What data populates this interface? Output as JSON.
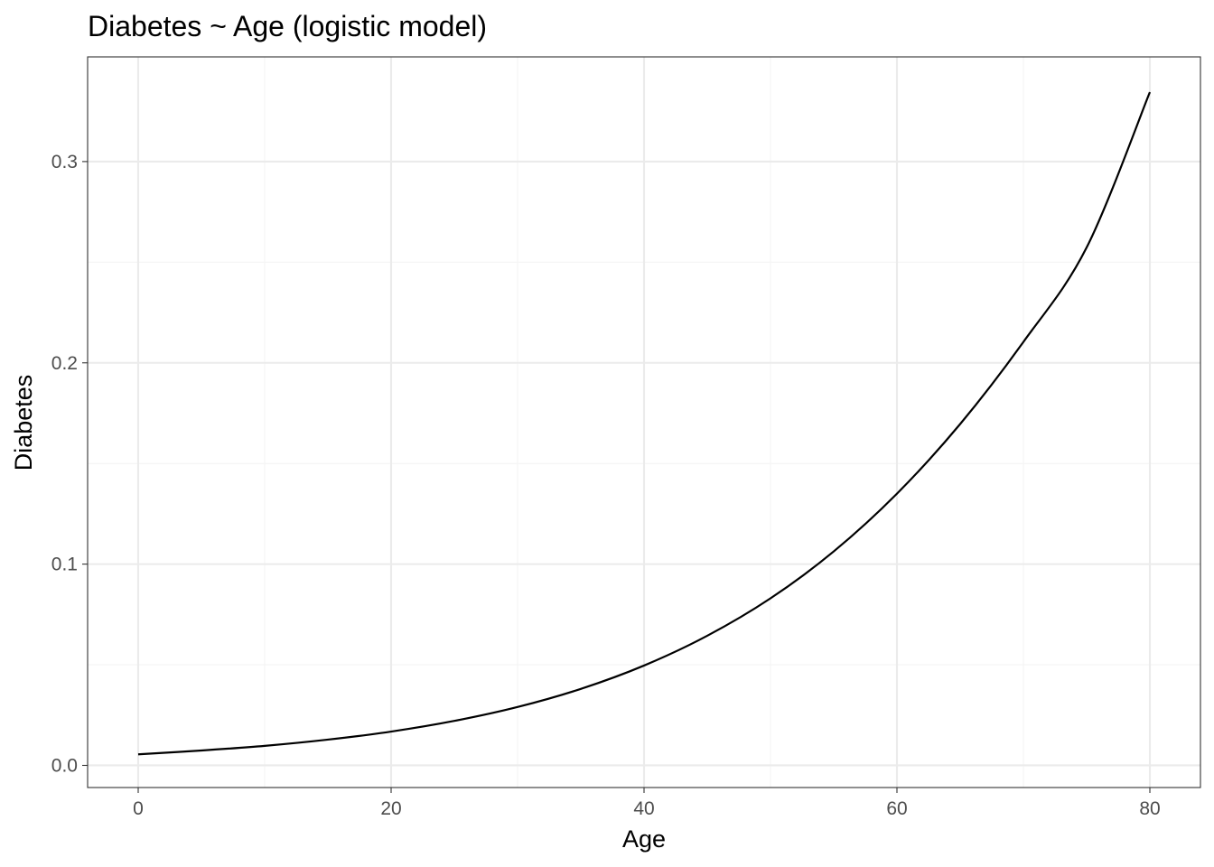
{
  "chart_data": {
    "type": "line",
    "title": "Diabetes ~ Age (logistic model)",
    "xlabel": "Age",
    "ylabel": "Diabetes",
    "xlim": [
      -4,
      84
    ],
    "ylim": [
      -0.011,
      0.352
    ],
    "x_ticks": [
      0,
      20,
      40,
      60,
      80
    ],
    "x_tick_labels": [
      "0",
      "20",
      "40",
      "60",
      "80"
    ],
    "y_ticks": [
      0.0,
      0.1,
      0.2,
      0.3
    ],
    "y_tick_labels": [
      "0.0",
      "0.1",
      "0.2",
      "0.3"
    ],
    "x_minor_ticks": [
      10,
      30,
      50,
      70
    ],
    "y_minor_ticks": [
      0.05,
      0.15,
      0.25
    ],
    "grid": true,
    "legend": "none",
    "series": [
      {
        "color": "#000000",
        "x": [
          0,
          5,
          10,
          15,
          20,
          25,
          30,
          35,
          40,
          45,
          50,
          55,
          60,
          65,
          70,
          75,
          80
        ],
        "y": [
          0.0055,
          0.0074,
          0.0097,
          0.0128,
          0.0168,
          0.0221,
          0.029,
          0.038,
          0.0496,
          0.0644,
          0.083,
          0.1063,
          0.135,
          0.1696,
          0.2104,
          0.2573,
          0.3345
        ]
      }
    ],
    "colors": {
      "panel_border": "#333333",
      "grid_major": "#ebebeb",
      "grid_minor": "#f4f4f4",
      "tick_text": "#4d4d4d",
      "line": "#000000"
    }
  }
}
